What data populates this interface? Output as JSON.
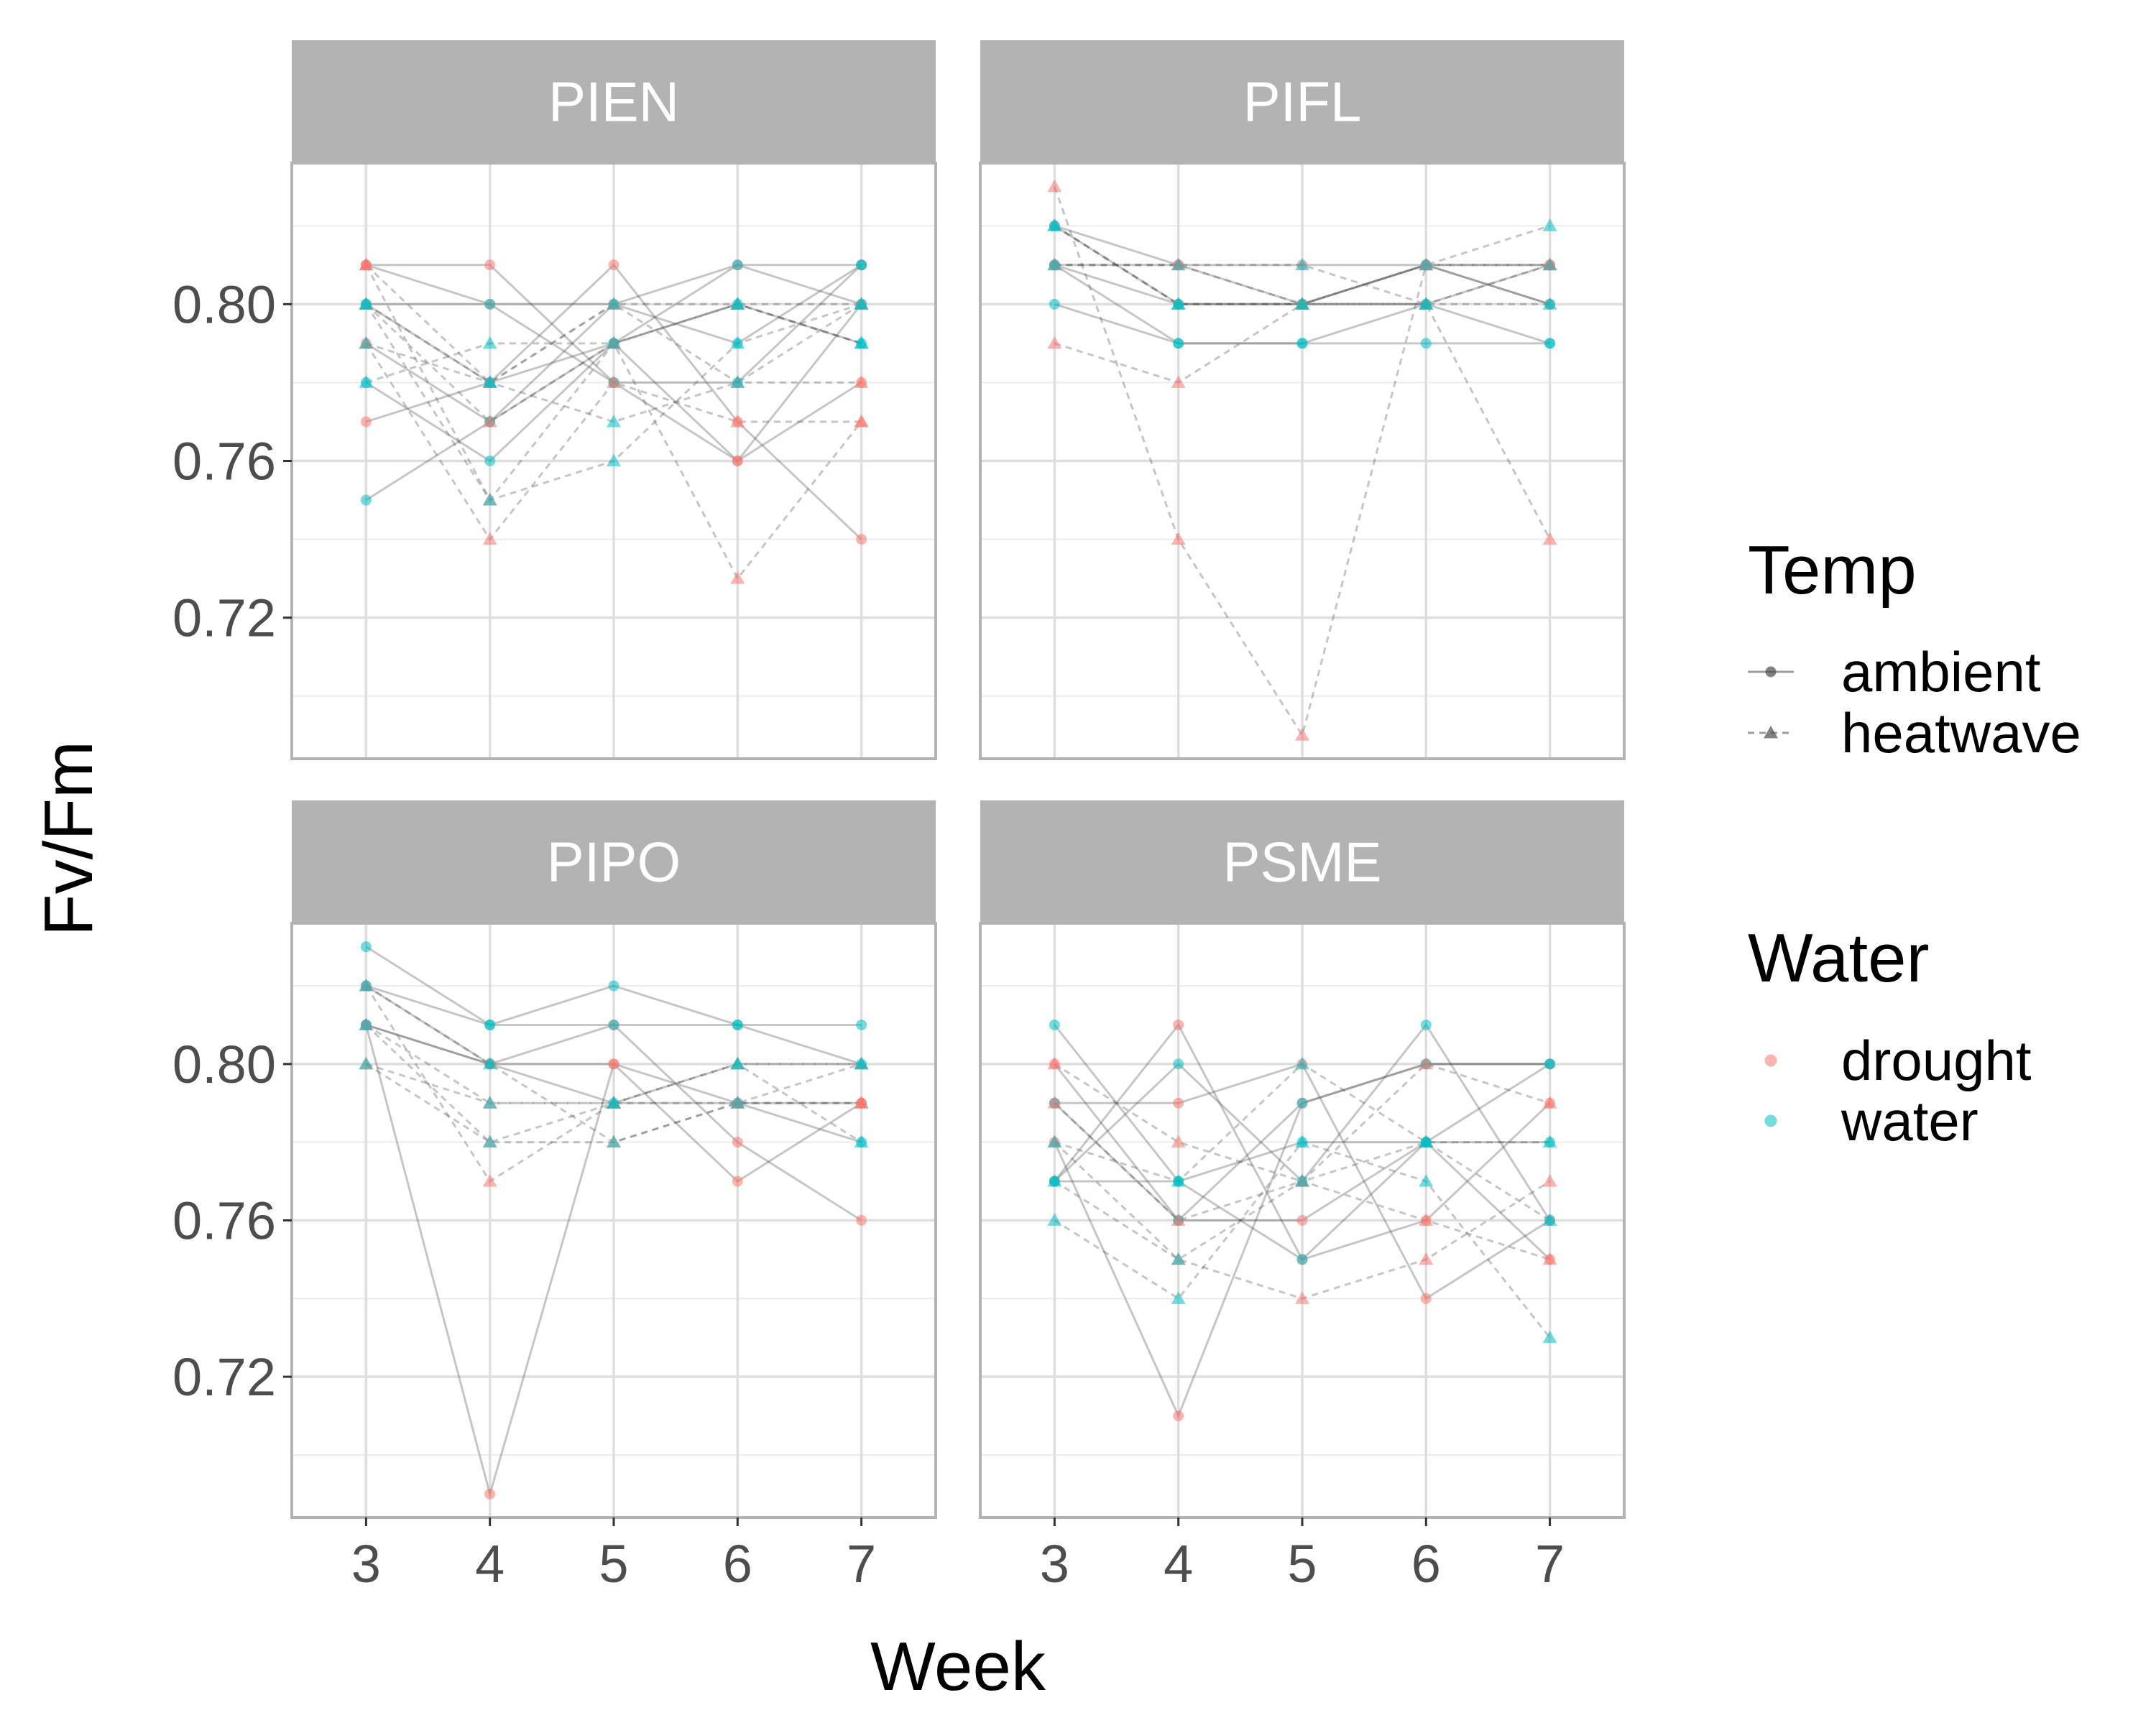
{
  "chart_data": {
    "type": "line",
    "xlabel": "Week",
    "ylabel": "Fv/Fm",
    "x_ticks": [
      3,
      4,
      5,
      6,
      7
    ],
    "y_ticks": [
      "0.72",
      "0.76",
      "0.80"
    ],
    "xlim": [
      2.4,
      7.6
    ],
    "ylim": [
      0.684,
      0.836
    ],
    "grid": true,
    "legend_position": "right",
    "colors": {
      "drought": "#F8766D",
      "water": "#00BFC4",
      "line": "#4d4d4d",
      "strip": "#b3b3b3",
      "grid": "#dedede",
      "border": "#b3b3b3"
    },
    "legends": [
      {
        "title": "Temp",
        "entries": [
          {
            "label": "ambient",
            "linetype": "solid",
            "shape": "circle"
          },
          {
            "label": "heatwave",
            "linetype": "dashed",
            "shape": "triangle"
          }
        ]
      },
      {
        "title": "Water",
        "entries": [
          {
            "label": "drought",
            "color": "#F8766D"
          },
          {
            "label": "water",
            "color": "#00BFC4"
          }
        ]
      }
    ],
    "panels": [
      {
        "species": "PIEN",
        "series": [
          {
            "temp": "ambient",
            "water": "drought",
            "x": [
              3,
              4,
              5,
              6,
              7
            ],
            "y": [
              0.81,
              0.8,
              0.8,
              0.81,
              0.81
            ]
          },
          {
            "temp": "ambient",
            "water": "drought",
            "x": [
              3,
              4,
              5,
              6,
              7
            ],
            "y": [
              0.79,
              0.77,
              0.79,
              0.76,
              0.8
            ]
          },
          {
            "temp": "ambient",
            "water": "drought",
            "x": [
              3,
              4,
              5,
              6,
              7
            ],
            "y": [
              0.77,
              0.78,
              0.81,
              0.77,
              0.74
            ]
          },
          {
            "temp": "ambient",
            "water": "drought",
            "x": [
              3,
              4,
              5,
              6,
              7
            ],
            "y": [
              0.81,
              0.81,
              0.78,
              0.76,
              0.78
            ]
          },
          {
            "temp": "ambient",
            "water": "water",
            "x": [
              3,
              4,
              5,
              6,
              7
            ],
            "y": [
              0.8,
              0.78,
              0.79,
              0.81,
              0.8
            ]
          },
          {
            "temp": "ambient",
            "water": "water",
            "x": [
              3,
              4,
              5,
              6,
              7
            ],
            "y": [
              0.75,
              0.77,
              0.8,
              0.79,
              0.81
            ]
          },
          {
            "temp": "ambient",
            "water": "water",
            "x": [
              3,
              4,
              5,
              6,
              7
            ],
            "y": [
              0.78,
              0.76,
              0.79,
              0.8,
              0.79
            ]
          },
          {
            "temp": "ambient",
            "water": "water",
            "x": [
              3,
              4,
              5,
              6,
              7
            ],
            "y": [
              0.8,
              0.8,
              0.78,
              0.78,
              0.81
            ]
          },
          {
            "temp": "heatwave",
            "water": "drought",
            "x": [
              3,
              4,
              5,
              6,
              7
            ],
            "y": [
              0.81,
              0.75,
              0.79,
              0.73,
              0.77
            ]
          },
          {
            "temp": "heatwave",
            "water": "drought",
            "x": [
              3,
              4,
              5,
              6,
              7
            ],
            "y": [
              0.79,
              0.74,
              0.78,
              0.77,
              0.77
            ]
          },
          {
            "temp": "heatwave",
            "water": "drought",
            "x": [
              3,
              4,
              5,
              6,
              7
            ],
            "y": [
              0.8,
              0.77,
              0.79,
              0.8,
              0.8
            ]
          },
          {
            "temp": "heatwave",
            "water": "drought",
            "x": [
              3,
              4,
              5,
              6,
              7
            ],
            "y": [
              0.81,
              0.78,
              0.8,
              0.78,
              0.78
            ]
          },
          {
            "temp": "heatwave",
            "water": "water",
            "x": [
              3,
              4,
              5,
              6,
              7
            ],
            "y": [
              0.78,
              0.79,
              0.79,
              0.8,
              0.79
            ]
          },
          {
            "temp": "heatwave",
            "water": "water",
            "x": [
              3,
              4,
              5,
              6,
              7
            ],
            "y": [
              0.8,
              0.75,
              0.76,
              0.79,
              0.8
            ]
          },
          {
            "temp": "heatwave",
            "water": "water",
            "x": [
              3,
              4,
              5,
              6,
              7
            ],
            "y": [
              0.79,
              0.78,
              0.77,
              0.78,
              0.8
            ]
          },
          {
            "temp": "heatwave",
            "water": "water",
            "x": [
              3,
              4,
              5,
              6,
              7
            ],
            "y": [
              0.8,
              0.78,
              0.8,
              0.8,
              0.79
            ]
          }
        ]
      },
      {
        "species": "PIFL",
        "series": [
          {
            "temp": "ambient",
            "water": "drought",
            "x": [
              3,
              4,
              5,
              6,
              7
            ],
            "y": [
              0.81,
              0.8,
              0.8,
              0.81,
              0.8
            ]
          },
          {
            "temp": "ambient",
            "water": "drought",
            "x": [
              3,
              4,
              5,
              6,
              7
            ],
            "y": [
              0.82,
              0.81,
              0.8,
              0.8,
              0.81
            ]
          },
          {
            "temp": "ambient",
            "water": "drought",
            "x": [
              3,
              4,
              5,
              6,
              7
            ],
            "y": [
              0.81,
              0.81,
              0.81,
              0.81,
              0.81
            ]
          },
          {
            "temp": "ambient",
            "water": "water",
            "x": [
              3,
              4,
              5,
              6,
              7
            ],
            "y": [
              0.8,
              0.79,
              0.79,
              0.8,
              0.79
            ]
          },
          {
            "temp": "ambient",
            "water": "water",
            "x": [
              3,
              4,
              5,
              6,
              7
            ],
            "y": [
              0.82,
              0.8,
              0.8,
              0.81,
              0.8
            ]
          },
          {
            "temp": "ambient",
            "water": "water",
            "x": [
              3,
              4,
              5,
              6,
              7
            ],
            "y": [
              0.81,
              0.79,
              0.79,
              0.79,
              0.79
            ]
          },
          {
            "temp": "heatwave",
            "water": "drought",
            "x": [
              3,
              4,
              5,
              6,
              7
            ],
            "y": [
              0.83,
              0.74,
              0.69,
              0.81,
              0.81
            ]
          },
          {
            "temp": "heatwave",
            "water": "drought",
            "x": [
              3,
              4,
              5,
              6,
              7
            ],
            "y": [
              0.79,
              0.78,
              0.8,
              0.8,
              0.74
            ]
          },
          {
            "temp": "heatwave",
            "water": "drought",
            "x": [
              3,
              4,
              5,
              6,
              7
            ],
            "y": [
              0.81,
              0.81,
              0.8,
              0.81,
              0.81
            ]
          },
          {
            "temp": "heatwave",
            "water": "water",
            "x": [
              3,
              4,
              5,
              6,
              7
            ],
            "y": [
              0.82,
              0.8,
              0.8,
              0.81,
              0.82
            ]
          },
          {
            "temp": "heatwave",
            "water": "water",
            "x": [
              3,
              4,
              5,
              6,
              7
            ],
            "y": [
              0.81,
              0.81,
              0.81,
              0.8,
              0.8
            ]
          },
          {
            "temp": "heatwave",
            "water": "water",
            "x": [
              3,
              4,
              5,
              6,
              7
            ],
            "y": [
              0.82,
              0.8,
              0.8,
              0.8,
              0.81
            ]
          }
        ]
      },
      {
        "species": "PIPO",
        "series": [
          {
            "temp": "ambient",
            "water": "drought",
            "x": [
              3,
              4,
              5,
              6,
              7
            ],
            "y": [
              0.82,
              0.8,
              0.8,
              0.79,
              0.79
            ]
          },
          {
            "temp": "ambient",
            "water": "drought",
            "x": [
              3,
              4,
              5,
              6,
              7
            ],
            "y": [
              0.81,
              0.69,
              0.8,
              0.77,
              0.79
            ]
          },
          {
            "temp": "ambient",
            "water": "drought",
            "x": [
              3,
              4,
              5,
              6,
              7
            ],
            "y": [
              0.81,
              0.8,
              0.81,
              0.78,
              0.76
            ]
          },
          {
            "temp": "ambient",
            "water": "water",
            "x": [
              3,
              4,
              5,
              6,
              7
            ],
            "y": [
              0.83,
              0.81,
              0.81,
              0.81,
              0.81
            ]
          },
          {
            "temp": "ambient",
            "water": "water",
            "x": [
              3,
              4,
              5,
              6,
              7
            ],
            "y": [
              0.82,
              0.81,
              0.82,
              0.81,
              0.8
            ]
          },
          {
            "temp": "ambient",
            "water": "water",
            "x": [
              3,
              4,
              5,
              6,
              7
            ],
            "y": [
              0.81,
              0.8,
              0.79,
              0.79,
              0.78
            ]
          },
          {
            "temp": "heatwave",
            "water": "drought",
            "x": [
              3,
              4,
              5,
              6,
              7
            ],
            "y": [
              0.82,
              0.77,
              0.79,
              0.79,
              0.79
            ]
          },
          {
            "temp": "heatwave",
            "water": "drought",
            "x": [
              3,
              4,
              5,
              6,
              7
            ],
            "y": [
              0.81,
              0.79,
              0.79,
              0.8,
              0.8
            ]
          },
          {
            "temp": "heatwave",
            "water": "drought",
            "x": [
              3,
              4,
              5,
              6,
              7
            ],
            "y": [
              0.8,
              0.78,
              0.78,
              0.79,
              0.79
            ]
          },
          {
            "temp": "heatwave",
            "water": "water",
            "x": [
              3,
              4,
              5,
              6,
              7
            ],
            "y": [
              0.81,
              0.78,
              0.79,
              0.8,
              0.78
            ]
          },
          {
            "temp": "heatwave",
            "water": "water",
            "x": [
              3,
              4,
              5,
              6,
              7
            ],
            "y": [
              0.8,
              0.79,
              0.79,
              0.8,
              0.8
            ]
          },
          {
            "temp": "heatwave",
            "water": "water",
            "x": [
              3,
              4,
              5,
              6,
              7
            ],
            "y": [
              0.82,
              0.8,
              0.78,
              0.79,
              0.8
            ]
          }
        ]
      },
      {
        "species": "PSME",
        "series": [
          {
            "temp": "ambient",
            "water": "drought",
            "x": [
              3,
              4,
              5,
              6,
              7
            ],
            "y": [
              0.78,
              0.71,
              0.79,
              0.8,
              0.8
            ]
          },
          {
            "temp": "ambient",
            "water": "drought",
            "x": [
              3,
              4,
              5,
              6,
              7
            ],
            "y": [
              0.77,
              0.81,
              0.75,
              0.76,
              0.79
            ]
          },
          {
            "temp": "ambient",
            "water": "drought",
            "x": [
              3,
              4,
              5,
              6,
              7
            ],
            "y": [
              0.79,
              0.79,
              0.8,
              0.74,
              0.76
            ]
          },
          {
            "temp": "ambient",
            "water": "drought",
            "x": [
              3,
              4,
              5,
              6,
              7
            ],
            "y": [
              0.8,
              0.76,
              0.76,
              0.78,
              0.75
            ]
          },
          {
            "temp": "ambient",
            "water": "water",
            "x": [
              3,
              4,
              5,
              6,
              7
            ],
            "y": [
              0.77,
              0.8,
              0.77,
              0.81,
              0.76
            ]
          },
          {
            "temp": "ambient",
            "water": "water",
            "x": [
              3,
              4,
              5,
              6,
              7
            ],
            "y": [
              0.77,
              0.77,
              0.78,
              0.78,
              0.78
            ]
          },
          {
            "temp": "ambient",
            "water": "water",
            "x": [
              3,
              4,
              5,
              6,
              7
            ],
            "y": [
              0.81,
              0.77,
              0.75,
              0.78,
              0.8
            ]
          },
          {
            "temp": "ambient",
            "water": "water",
            "x": [
              3,
              4,
              5,
              6,
              7
            ],
            "y": [
              0.79,
              0.76,
              0.79,
              0.8,
              0.8
            ]
          },
          {
            "temp": "heatwave",
            "water": "drought",
            "x": [
              3,
              4,
              5,
              6,
              7
            ],
            "y": [
              0.78,
              0.75,
              0.74,
              0.75,
              0.77
            ]
          },
          {
            "temp": "heatwave",
            "water": "drought",
            "x": [
              3,
              4,
              5,
              6,
              7
            ],
            "y": [
              0.8,
              0.78,
              0.77,
              0.8,
              0.79
            ]
          },
          {
            "temp": "heatwave",
            "water": "drought",
            "x": [
              3,
              4,
              5,
              6,
              7
            ],
            "y": [
              0.79,
              0.76,
              0.77,
              0.76,
              0.75
            ]
          },
          {
            "temp": "heatwave",
            "water": "water",
            "x": [
              3,
              4,
              5,
              6,
              7
            ],
            "y": [
              0.76,
              0.74,
              0.78,
              0.77,
              0.73
            ]
          },
          {
            "temp": "heatwave",
            "water": "water",
            "x": [
              3,
              4,
              5,
              6,
              7
            ],
            "y": [
              0.77,
              0.75,
              0.77,
              0.78,
              0.78
            ]
          },
          {
            "temp": "heatwave",
            "water": "water",
            "x": [
              3,
              4,
              5,
              6,
              7
            ],
            "y": [
              0.78,
              0.77,
              0.8,
              0.78,
              0.76
            ]
          }
        ]
      }
    ]
  }
}
